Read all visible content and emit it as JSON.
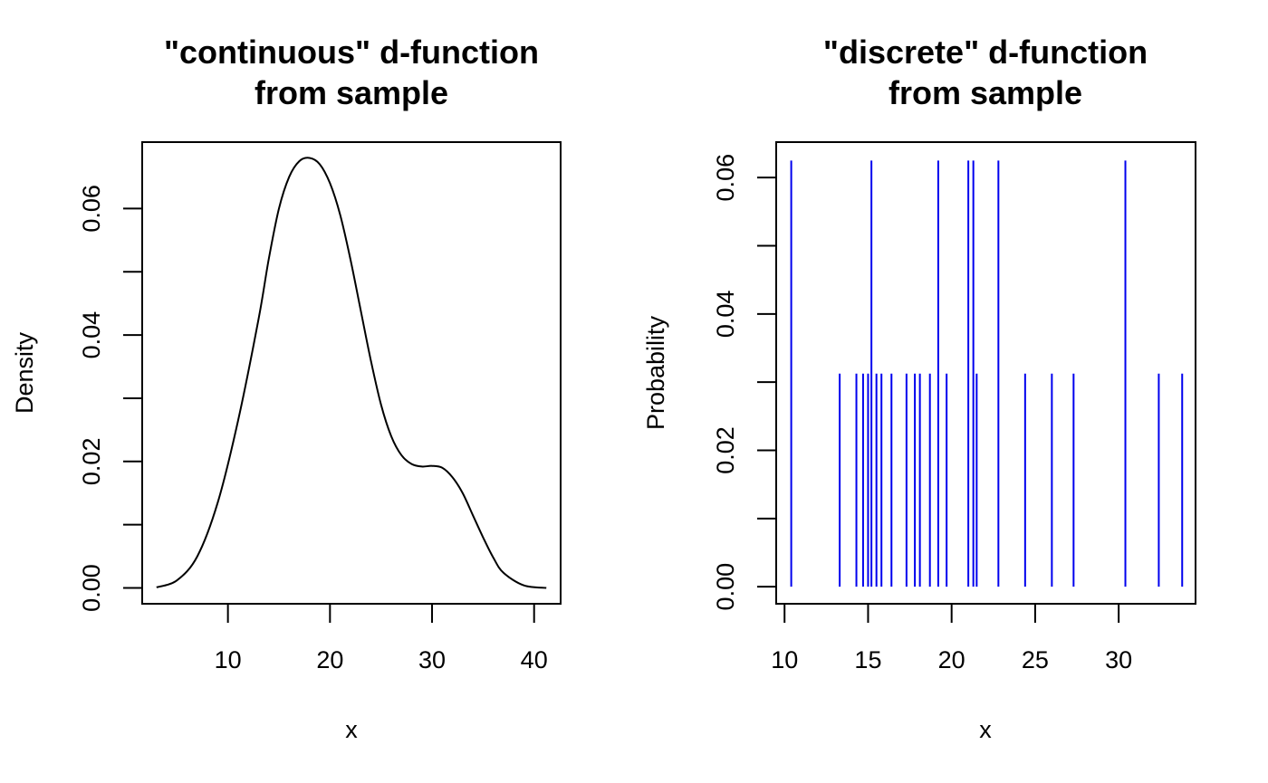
{
  "chart_data": [
    {
      "type": "line",
      "title_line1": "\"continuous\" d-function",
      "title_line2": "from sample",
      "xlabel": "x",
      "ylabel": "Density",
      "xlim": [
        1.6,
        42.6
      ],
      "ylim": [
        -0.0025,
        0.0705
      ],
      "xticks": [
        10,
        20,
        30,
        40
      ],
      "yticks": [
        0.0,
        0.01,
        0.02,
        0.03,
        0.04,
        0.05,
        0.06
      ],
      "ytick_labels": [
        "0.00",
        "",
        "0.02",
        "",
        "0.04",
        "",
        "0.06"
      ],
      "color": "#000000",
      "x": [
        3,
        5,
        7,
        9,
        11,
        13,
        14,
        15,
        16,
        17,
        18,
        19,
        20,
        21,
        22,
        23,
        24,
        25,
        26,
        27,
        28,
        29,
        30,
        31,
        32,
        33,
        34,
        35,
        36,
        37,
        39,
        41.2
      ],
      "y": [
        0.0001,
        0.0012,
        0.005,
        0.0135,
        0.0265,
        0.0425,
        0.052,
        0.06,
        0.065,
        0.0675,
        0.068,
        0.067,
        0.064,
        0.059,
        0.052,
        0.044,
        0.036,
        0.029,
        0.024,
        0.021,
        0.0196,
        0.0192,
        0.0193,
        0.019,
        0.0175,
        0.015,
        0.0115,
        0.008,
        0.0048,
        0.0024,
        0.0004,
        0.0
      ]
    },
    {
      "type": "bar",
      "title_line1": "\"discrete\" d-function",
      "title_line2": "from sample",
      "xlabel": "x",
      "ylabel": "Probability",
      "xlim": [
        9.5,
        34.6
      ],
      "ylim": [
        -0.0025,
        0.0652
      ],
      "xticks": [
        10,
        15,
        20,
        25,
        30
      ],
      "yticks": [
        0.0,
        0.01,
        0.02,
        0.03,
        0.04,
        0.05,
        0.06
      ],
      "ytick_labels": [
        "0.00",
        "",
        "0.02",
        "",
        "0.04",
        "",
        "0.06"
      ],
      "color": "#0000ee",
      "x": [
        10.4,
        13.3,
        14.3,
        14.7,
        15.0,
        15.2,
        15.5,
        15.8,
        16.4,
        17.3,
        17.8,
        18.1,
        18.7,
        19.2,
        19.7,
        21.0,
        21.3,
        21.5,
        22.8,
        24.4,
        26.0,
        27.3,
        30.4,
        32.4,
        33.8
      ],
      "y": [
        0.0625,
        0.03125,
        0.03125,
        0.03125,
        0.03125,
        0.0625,
        0.03125,
        0.03125,
        0.03125,
        0.03125,
        0.03125,
        0.03125,
        0.03125,
        0.0625,
        0.03125,
        0.0625,
        0.0625,
        0.03125,
        0.0625,
        0.03125,
        0.03125,
        0.03125,
        0.0625,
        0.03125,
        0.03125
      ]
    }
  ]
}
